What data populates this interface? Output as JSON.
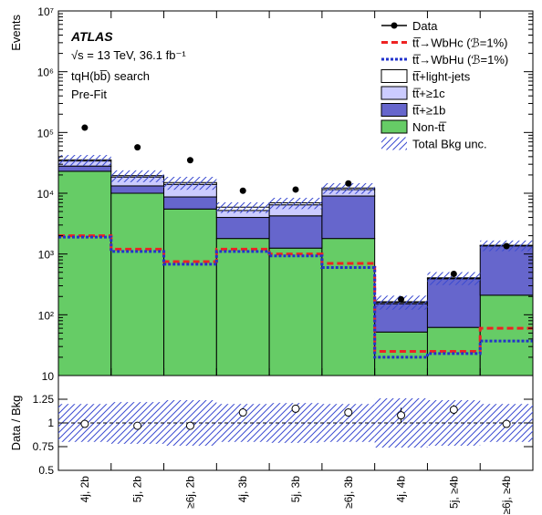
{
  "chart_data": [
    {
      "type": "bar",
      "subtype": "stacked-histogram",
      "categories": [
        "4j, 2b",
        "5j, 2b",
        "≥6j, 2b",
        "4j, 3b",
        "5j, 3b",
        "≥6j, 3b",
        "4j, 4b",
        "5j, ≥4b",
        "≥6j, ≥4b"
      ],
      "ylabel": "Events",
      "yscale": "log",
      "ylim": [
        10,
        10000000
      ],
      "ytick_labels": [
        "10",
        "10²",
        "10³",
        "10⁴",
        "10⁵",
        "10⁶",
        "10⁷"
      ],
      "annotation": {
        "experiment": "ATLAS",
        "energy": "√s = 13 TeV, 36.1 fb⁻¹",
        "analysis": "tqH(bb̅) search",
        "stage": "Pre-Fit"
      },
      "legend_position": "top-right",
      "stack": [
        {
          "name": "Non-tt̅",
          "color": "#66cc66",
          "values": [
            23000,
            10000,
            5500,
            1800,
            1250,
            1800,
            52,
            62,
            210
          ]
        },
        {
          "name": "tt̅+≥1b",
          "color": "#6666cc",
          "values": [
            5000,
            3200,
            3200,
            2200,
            3000,
            7200,
            100,
            330,
            1150
          ]
        },
        {
          "name": "tt̅+≥1c",
          "color": "#ccccff",
          "values": [
            6000,
            5300,
            5300,
            1200,
            2200,
            2500,
            8,
            10,
            20
          ]
        },
        {
          "name": "tt̅+light-jets",
          "color": "#ffffff",
          "values": [
            1500,
            1000,
            1000,
            700,
            500,
            700,
            4,
            4,
            10
          ]
        }
      ],
      "signals": [
        {
          "name": "tt̅→WbHc (ℬ=1%)",
          "color": "#ee2222",
          "style": "dashed",
          "values": [
            2000,
            1200,
            750,
            1200,
            1000,
            700,
            25,
            25,
            60
          ]
        },
        {
          "name": "tt̅→WbHu (ℬ=1%)",
          "color": "#2233cc",
          "style": "dotted",
          "values": [
            1900,
            1100,
            680,
            1100,
            930,
            600,
            20,
            23,
            37
          ]
        }
      ],
      "data": {
        "name": "Data",
        "values": [
          120000,
          57000,
          35000,
          11000,
          11500,
          14500,
          180,
          470,
          1350
        ]
      },
      "bkg_unc": {
        "name": "Total Bkg unc.",
        "rel": [
          0.2,
          0.22,
          0.24,
          0.2,
          0.21,
          0.2,
          0.26,
          0.24,
          0.2
        ]
      }
    },
    {
      "type": "scatter",
      "ylabel": "Data / Bkg",
      "ylim": [
        0.5,
        1.5
      ],
      "ytick_labels": [
        "0.5",
        "0.75",
        "1",
        "1.25"
      ],
      "reference_line": 1,
      "values": [
        0.99,
        0.97,
        0.97,
        1.11,
        1.15,
        1.11,
        1.08,
        1.14,
        0.99
      ],
      "errors": [
        0.005,
        0.005,
        0.008,
        0.012,
        0.012,
        0.01,
        0.08,
        0.05,
        0.03
      ]
    }
  ]
}
